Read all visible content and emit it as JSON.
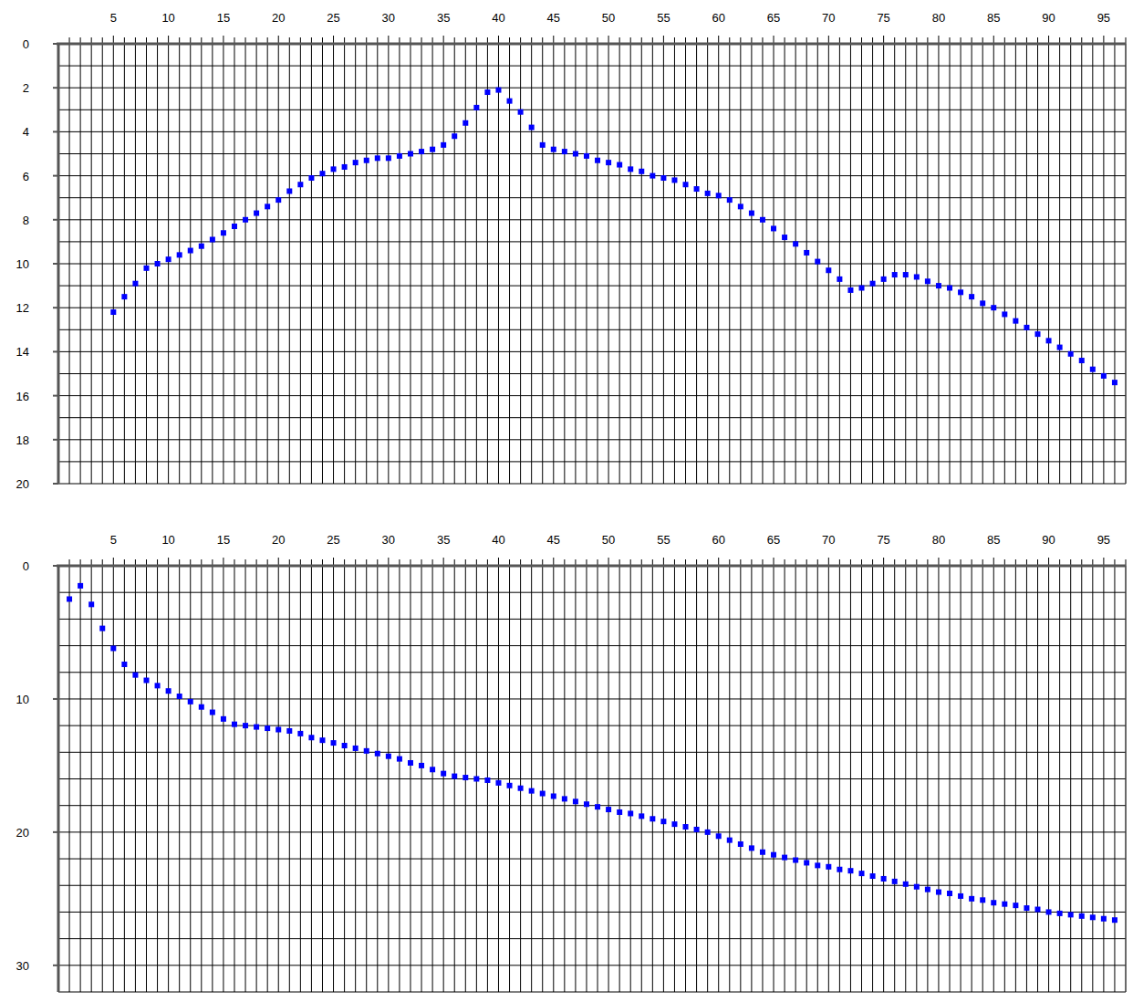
{
  "chart_data": [
    {
      "type": "scatter",
      "marker": "square",
      "color": "#0000ff",
      "grid": true,
      "xlim": [
        0,
        97
      ],
      "ylim": [
        0,
        20
      ],
      "xticks": [
        5,
        10,
        15,
        20,
        25,
        30,
        35,
        40,
        45,
        50,
        55,
        60,
        65,
        70,
        75,
        80,
        85,
        90,
        95
      ],
      "yticks": [
        0,
        2,
        4,
        6,
        8,
        10,
        12,
        14,
        16,
        18,
        20
      ],
      "x": [
        5,
        6,
        7,
        8,
        9,
        10,
        11,
        12,
        13,
        14,
        15,
        16,
        17,
        18,
        19,
        20,
        21,
        22,
        23,
        24,
        25,
        26,
        27,
        28,
        29,
        30,
        31,
        32,
        33,
        34,
        35,
        36,
        37,
        38,
        39,
        40,
        41,
        42,
        43,
        44,
        45,
        46,
        47,
        48,
        49,
        50,
        51,
        52,
        53,
        54,
        55,
        56,
        57,
        58,
        59,
        60,
        61,
        62,
        63,
        64,
        65,
        66,
        67,
        68,
        69,
        70,
        71,
        72,
        73,
        74,
        75,
        76,
        77,
        78,
        79,
        80,
        81,
        82,
        83,
        84,
        85,
        86,
        87,
        88,
        89,
        90,
        91,
        92,
        93,
        94,
        95,
        96
      ],
      "values": [
        12.2,
        11.5,
        10.9,
        10.2,
        10.0,
        9.8,
        9.6,
        9.4,
        9.2,
        8.9,
        8.6,
        8.3,
        8.0,
        7.7,
        7.4,
        7.1,
        6.7,
        6.4,
        6.1,
        5.9,
        5.7,
        5.6,
        5.4,
        5.3,
        5.2,
        5.2,
        5.1,
        5.0,
        4.9,
        4.8,
        4.6,
        4.2,
        3.6,
        2.9,
        2.2,
        2.1,
        2.6,
        3.1,
        3.8,
        4.6,
        4.8,
        4.9,
        5.0,
        5.1,
        5.3,
        5.4,
        5.5,
        5.7,
        5.8,
        6.0,
        6.1,
        6.2,
        6.4,
        6.6,
        6.8,
        6.9,
        7.1,
        7.4,
        7.7,
        8.0,
        8.4,
        8.8,
        9.1,
        9.5,
        9.9,
        10.3,
        10.7,
        11.2,
        11.1,
        10.9,
        10.7,
        10.5,
        10.5,
        10.6,
        10.8,
        11.0,
        11.1,
        11.3,
        11.5,
        11.8,
        12.0,
        12.3,
        12.6,
        12.9,
        13.2,
        13.5,
        13.8,
        14.1,
        14.4,
        14.8,
        15.1,
        15.4
      ]
    },
    {
      "type": "scatter",
      "marker": "square",
      "color": "#0000ff",
      "grid": true,
      "xlim": [
        0,
        97
      ],
      "ylim": [
        0,
        32
      ],
      "xticks": [
        5,
        10,
        15,
        20,
        25,
        30,
        35,
        40,
        45,
        50,
        55,
        60,
        65,
        70,
        75,
        80,
        85,
        90,
        95
      ],
      "yticks": [
        0,
        10,
        20,
        30
      ],
      "x": [
        1,
        2,
        3,
        4,
        5,
        6,
        7,
        8,
        9,
        10,
        11,
        12,
        13,
        14,
        15,
        16,
        17,
        18,
        19,
        20,
        21,
        22,
        23,
        24,
        25,
        26,
        27,
        28,
        29,
        30,
        31,
        32,
        33,
        34,
        35,
        36,
        37,
        38,
        39,
        40,
        41,
        42,
        43,
        44,
        45,
        46,
        47,
        48,
        49,
        50,
        51,
        52,
        53,
        54,
        55,
        56,
        57,
        58,
        59,
        60,
        61,
        62,
        63,
        64,
        65,
        66,
        67,
        68,
        69,
        70,
        71,
        72,
        73,
        74,
        75,
        76,
        77,
        78,
        79,
        80,
        81,
        82,
        83,
        84,
        85,
        86,
        87,
        88,
        89,
        90,
        91,
        92,
        93,
        94,
        95,
        96
      ],
      "values": [
        2.5,
        1.5,
        2.9,
        4.7,
        6.2,
        7.4,
        8.2,
        8.6,
        9.0,
        9.4,
        9.8,
        10.2,
        10.6,
        11.0,
        11.5,
        11.9,
        12.0,
        12.1,
        12.2,
        12.3,
        12.4,
        12.6,
        12.9,
        13.1,
        13.3,
        13.5,
        13.7,
        13.9,
        14.1,
        14.3,
        14.5,
        14.8,
        15.0,
        15.3,
        15.6,
        15.8,
        15.9,
        16.0,
        16.1,
        16.3,
        16.5,
        16.7,
        16.9,
        17.1,
        17.3,
        17.5,
        17.7,
        17.9,
        18.1,
        18.3,
        18.5,
        18.6,
        18.8,
        19.0,
        19.2,
        19.4,
        19.6,
        19.8,
        20.0,
        20.3,
        20.6,
        20.9,
        21.2,
        21.5,
        21.7,
        21.9,
        22.1,
        22.3,
        22.5,
        22.6,
        22.8,
        22.9,
        23.1,
        23.3,
        23.5,
        23.7,
        23.9,
        24.1,
        24.3,
        24.5,
        24.6,
        24.8,
        25.0,
        25.1,
        25.3,
        25.4,
        25.5,
        25.7,
        25.8,
        26.0,
        26.1,
        26.2,
        26.3,
        26.4,
        26.5,
        26.6
      ]
    }
  ]
}
